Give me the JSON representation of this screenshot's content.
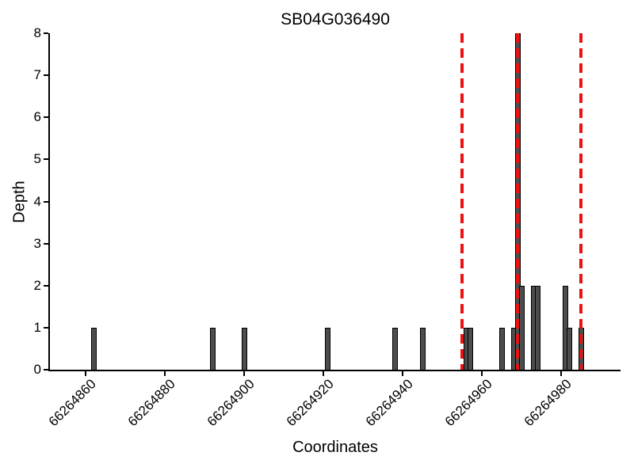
{
  "chart_data": {
    "type": "bar",
    "title": "SB04G036490",
    "xlabel": "Coordinates",
    "ylabel": "Depth",
    "xlim": [
      66264851,
      66264995
    ],
    "ylim": [
      0,
      8
    ],
    "x_ticks": [
      66264860,
      66264880,
      66264900,
      66264920,
      66264940,
      66264960,
      66264980
    ],
    "y_ticks": [
      0,
      1,
      2,
      3,
      4,
      5,
      6,
      7,
      8
    ],
    "bar_width": 1,
    "bars": [
      {
        "x": 66264862,
        "depth": 1
      },
      {
        "x": 66264892,
        "depth": 1
      },
      {
        "x": 66264900,
        "depth": 1
      },
      {
        "x": 66264921,
        "depth": 1
      },
      {
        "x": 66264938,
        "depth": 1
      },
      {
        "x": 66264945,
        "depth": 1
      },
      {
        "x": 66264956,
        "depth": 1
      },
      {
        "x": 66264957,
        "depth": 1
      },
      {
        "x": 66264965,
        "depth": 1
      },
      {
        "x": 66264968,
        "depth": 1
      },
      {
        "x": 66264969,
        "depth": 8
      },
      {
        "x": 66264970,
        "depth": 2
      },
      {
        "x": 66264973,
        "depth": 2
      },
      {
        "x": 66264974,
        "depth": 2
      },
      {
        "x": 66264981,
        "depth": 2
      },
      {
        "x": 66264982,
        "depth": 1
      },
      {
        "x": 66264985,
        "depth": 1
      }
    ],
    "red_dashed_lines_x": [
      66264955,
      66264969,
      66264985
    ],
    "legend": null,
    "grid": false,
    "colors": {
      "bar_fill": "#4d4d4d",
      "bar_edge": "#000000",
      "dashed_line": "#ee1111",
      "axis": "#000000",
      "background": "#ffffff"
    }
  }
}
